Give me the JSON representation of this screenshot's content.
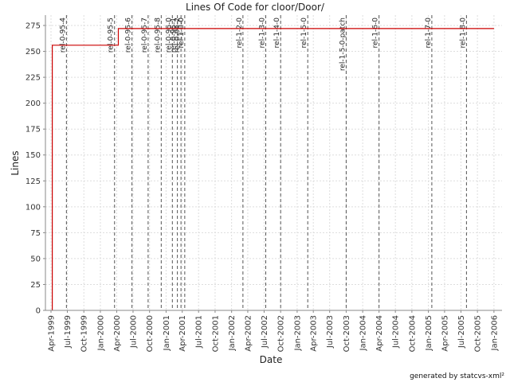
{
  "chart_data": {
    "type": "line",
    "title": "Lines Of Code for cloor/Door/",
    "xlabel": "Date",
    "ylabel": "Lines",
    "footer": "generated by statcvs-xml²",
    "ylim": [
      0,
      285
    ],
    "xlim": [
      "1999-03-01",
      "2006-02-15"
    ],
    "grid": true,
    "line_color": "#cc0000",
    "x_ticks": [
      "Apr-1999",
      "Jul-1999",
      "Oct-1999",
      "Jan-2000",
      "Apr-2000",
      "Jul-2000",
      "Oct-2000",
      "Jan-2001",
      "Apr-2001",
      "Jul-2001",
      "Oct-2001",
      "Jan-2002",
      "Apr-2002",
      "Jul-2002",
      "Oct-2002",
      "Jan-2003",
      "Apr-2003",
      "Jul-2003",
      "Oct-2003",
      "Jan-2004",
      "Apr-2004",
      "Jul-2004",
      "Oct-2004",
      "Jan-2005",
      "Apr-2005",
      "Jul-2005",
      "Oct-2005",
      "Jan-2006"
    ],
    "y_ticks": [
      0,
      25,
      50,
      75,
      100,
      125,
      150,
      175,
      200,
      225,
      250,
      275
    ],
    "series": [
      {
        "points": [
          {
            "x": "1999-04-08",
            "y": 0
          },
          {
            "x": "1999-04-08",
            "y": 256
          },
          {
            "x": "2000-04-10",
            "y": 256
          },
          {
            "x": "2000-04-10",
            "y": 272
          },
          {
            "x": "2006-01-01",
            "y": 272
          }
        ]
      }
    ],
    "releases": [
      {
        "label": "rel-0-95-4",
        "date": "1999-06-26"
      },
      {
        "label": "rel-0-95-5",
        "date": "2000-03-20"
      },
      {
        "label": "rel-0-95-6",
        "date": "2000-06-25"
      },
      {
        "label": "rel-0-95-7",
        "date": "2000-09-23"
      },
      {
        "label": "rel-0-95-8",
        "date": "2000-12-05"
      },
      {
        "label": "rel-0-96-0",
        "date": "2001-02-05"
      },
      {
        "label": "rel-0-96-1",
        "date": "2001-03-05"
      },
      {
        "label": "rel-0-96-2",
        "date": "2001-03-25"
      },
      {
        "label": "rel-1-0-0",
        "date": "2001-04-15"
      },
      {
        "label": "rel-1-2-0",
        "date": "2002-03-05"
      },
      {
        "label": "rel-1-3-0",
        "date": "2002-07-10"
      },
      {
        "label": "rel-1-4-0",
        "date": "2002-10-01"
      },
      {
        "label": "rel-1-5-0",
        "date": "2003-03-01"
      },
      {
        "label": "rel-1-5-0-patch",
        "date": "2003-10-01"
      },
      {
        "label": "rel-1-6-0",
        "date": "2004-04-01"
      },
      {
        "label": "rel-1-7-0",
        "date": "2005-01-20"
      },
      {
        "label": "rel-1-8-0",
        "date": "2005-08-01"
      }
    ]
  }
}
